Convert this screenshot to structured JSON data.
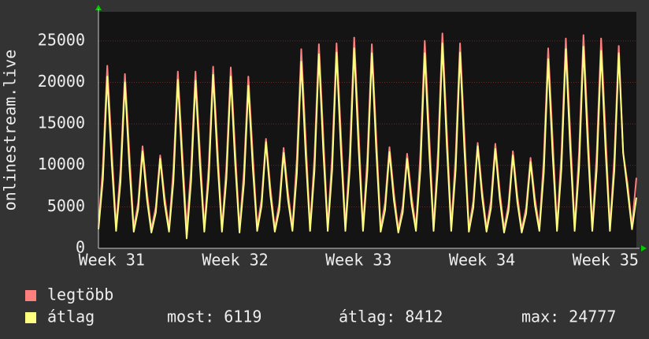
{
  "chart_data": {
    "type": "line",
    "y_label": "onlinestream.live",
    "categories": [
      null,
      null,
      null,
      "Week 31",
      null,
      null,
      null,
      null,
      null,
      null,
      null,
      null,
      null,
      null,
      null,
      null,
      null,
      null,
      null,
      null,
      null,
      null,
      null,
      null,
      null,
      null,
      null,
      null,
      null,
      null,
      null,
      "Week 32",
      null,
      null,
      null,
      null,
      null,
      null,
      null,
      null,
      null,
      null,
      null,
      null,
      null,
      null,
      null,
      null,
      null,
      null,
      null,
      null,
      null,
      null,
      null,
      null,
      null,
      null,
      null,
      "Week 33",
      null,
      null,
      null,
      null,
      null,
      null,
      null,
      null,
      null,
      null,
      null,
      null,
      null,
      null,
      null,
      null,
      null,
      null,
      null,
      null,
      null,
      null,
      null,
      null,
      null,
      null,
      null,
      "Week 34",
      null,
      null,
      null,
      null,
      null,
      null,
      null,
      null,
      null,
      null,
      null,
      null,
      null,
      null,
      null,
      null,
      null,
      null,
      null,
      null,
      null,
      null,
      null,
      null,
      null,
      null,
      null,
      "Week 35",
      null,
      null,
      null,
      null,
      null,
      null,
      null
    ],
    "series": [
      {
        "name": "legtöbb",
        "color": "#ff7f7f",
        "values": [
          2600,
          9900,
          22000,
          12100,
          2500,
          9500,
          21000,
          11600,
          2400,
          5500,
          12300,
          6800,
          2300,
          5000,
          11200,
          6200,
          2400,
          9600,
          21300,
          11700,
          2300,
          9600,
          21300,
          11700,
          2400,
          9900,
          21900,
          12000,
          2400,
          9800,
          21800,
          12000,
          2300,
          9300,
          20700,
          11400,
          2500,
          5900,
          13200,
          7300,
          2400,
          5400,
          12100,
          6700,
          2500,
          10800,
          24000,
          13200,
          2500,
          11100,
          24600,
          13500,
          2500,
          11100,
          24700,
          13600,
          2500,
          11400,
          25400,
          14000,
          2500,
          11100,
          24600,
          13500,
          2400,
          5500,
          12200,
          6700,
          2300,
          5100,
          11400,
          6300,
          2500,
          11300,
          25000,
          13800,
          2500,
          11700,
          25900,
          14200,
          2500,
          11100,
          24700,
          13600,
          2400,
          5700,
          12700,
          7000,
          2400,
          5700,
          12600,
          6900,
          2300,
          5300,
          11700,
          6400,
          2300,
          4900,
          10900,
          6000,
          2500,
          10800,
          24100,
          13300,
          2500,
          11400,
          25300,
          13900,
          2500,
          11600,
          25700,
          14100,
          2500,
          11400,
          25300,
          13900,
          2500,
          11000,
          24400,
          11500,
          7800,
          2600,
          8500
        ]
      },
      {
        "name": "átlag",
        "color": "#ffff80",
        "values": [
          2300,
          8300,
          20700,
          10400,
          2100,
          8000,
          20000,
          10000,
          2000,
          4700,
          11700,
          5900,
          1900,
          4300,
          10800,
          5400,
          2000,
          8100,
          20300,
          10200,
          1200,
          8100,
          20200,
          10100,
          2000,
          8400,
          20900,
          10500,
          2000,
          8300,
          20700,
          10400,
          1900,
          7800,
          19600,
          9800,
          2100,
          5100,
          12800,
          6400,
          2000,
          4600,
          11500,
          5800,
          2100,
          9000,
          22500,
          11300,
          2100,
          9400,
          23400,
          11700,
          2100,
          9400,
          23600,
          11800,
          2100,
          9600,
          24100,
          12100,
          2100,
          9400,
          23500,
          11800,
          2000,
          4600,
          11600,
          5800,
          1900,
          4300,
          10800,
          5400,
          2100,
          9400,
          23500,
          11800,
          2100,
          9900,
          24700,
          12400,
          2100,
          9400,
          23600,
          11800,
          2000,
          4900,
          12300,
          6200,
          2000,
          4800,
          12000,
          6000,
          1900,
          4500,
          11200,
          5600,
          1900,
          4200,
          10400,
          5200,
          2100,
          9100,
          22800,
          11400,
          2100,
          9600,
          24000,
          12000,
          2100,
          9700,
          24300,
          12200,
          2100,
          9500,
          23800,
          11900,
          2100,
          9400,
          23500,
          11500,
          7000,
          2300,
          6119
        ]
      }
    ],
    "ylim": [
      0,
      28500
    ],
    "yticks": [
      0,
      5000,
      10000,
      15000,
      20000,
      25000
    ],
    "grid": true,
    "stats": [
      {
        "label": "most:",
        "value": 6119
      },
      {
        "label": "átlag:",
        "value": 8412
      },
      {
        "label": "max:",
        "value": 24777
      }
    ]
  }
}
